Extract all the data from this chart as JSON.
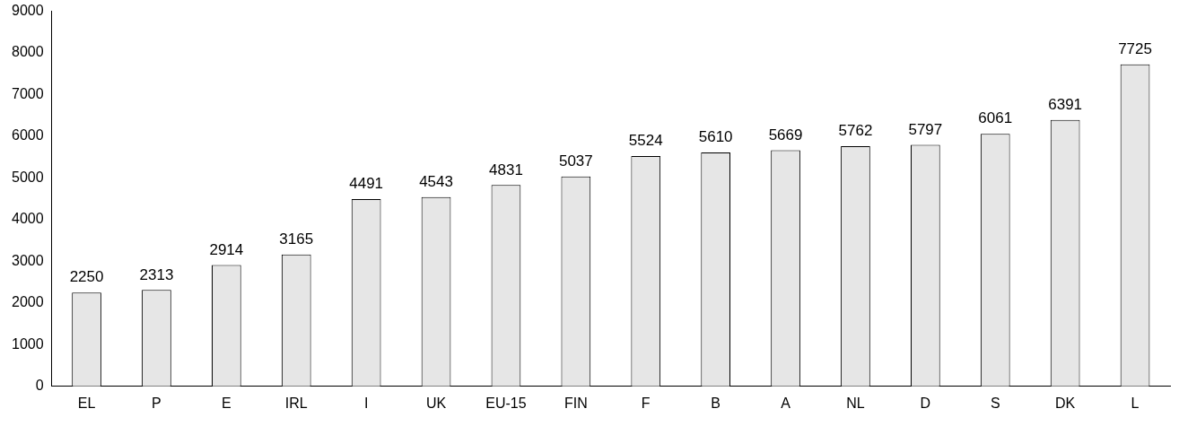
{
  "chart_data": {
    "type": "bar",
    "categories": [
      "EL",
      "P",
      "E",
      "IRL",
      "I",
      "UK",
      "EU-15",
      "FIN",
      "F",
      "B",
      "A",
      "NL",
      "D",
      "S",
      "DK",
      "L"
    ],
    "values": [
      2250,
      2313,
      2914,
      3165,
      4491,
      4543,
      4831,
      5037,
      5524,
      5610,
      5669,
      5762,
      5797,
      6061,
      6391,
      7725
    ],
    "color": "#e6e6e6",
    "ylim": [
      0,
      9000
    ],
    "yticks": [
      0,
      1000,
      2000,
      3000,
      4000,
      5000,
      6000,
      7000,
      8000,
      9000
    ],
    "grid": false,
    "legend": false,
    "data_labels": true
  }
}
